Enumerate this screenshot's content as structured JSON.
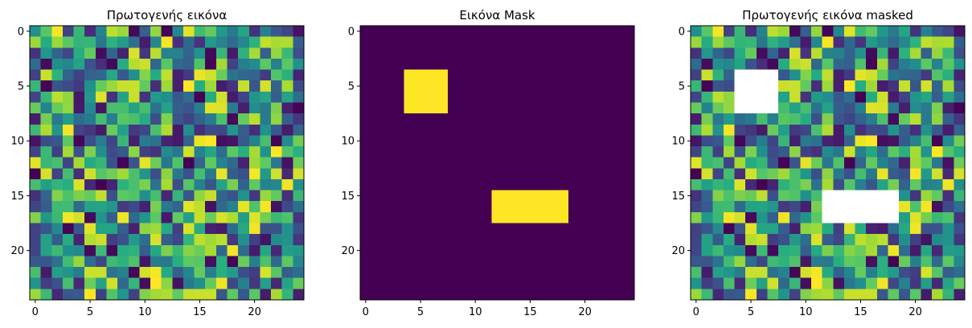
{
  "figure": {
    "background": "#ffffff"
  },
  "chart_data": [
    {
      "type": "heatmap",
      "title": "Πρωτογενής εικόνα",
      "grid_size": [
        25,
        25
      ],
      "colormap": "viridis",
      "value_range": [
        0,
        1
      ],
      "xlim": [
        -0.5,
        24.5
      ],
      "ylim": [
        24.5,
        -0.5
      ],
      "xticks": [
        0,
        5,
        10,
        15,
        20
      ],
      "yticks": [
        0,
        5,
        10,
        15,
        20
      ],
      "xlabel": "",
      "ylabel": "",
      "values_note": "random-valued 25x25 image",
      "masked_regions": []
    },
    {
      "type": "heatmap",
      "title": "Εικόνα Mask",
      "grid_size": [
        25,
        25
      ],
      "colormap": "viridis",
      "value_range": [
        0,
        1
      ],
      "xlim": [
        -0.5,
        24.5
      ],
      "ylim": [
        24.5,
        -0.5
      ],
      "xticks": [
        0,
        5,
        10,
        15,
        20
      ],
      "yticks": [
        0,
        5,
        10,
        15,
        20
      ],
      "xlabel": "",
      "ylabel": "",
      "regions_value_1": [
        {
          "row_start": 4,
          "row_end": 7,
          "col_start": 4,
          "col_end": 7
        },
        {
          "row_start": 15,
          "row_end": 17,
          "col_start": 12,
          "col_end": 18
        }
      ],
      "background_value": 0
    },
    {
      "type": "heatmap",
      "title": "Πρωτογενής εικόνα masked",
      "grid_size": [
        25,
        25
      ],
      "colormap": "viridis",
      "value_range": [
        0,
        1
      ],
      "xlim": [
        -0.5,
        24.5
      ],
      "ylim": [
        24.5,
        -0.5
      ],
      "xticks": [
        0,
        5,
        10,
        15,
        20
      ],
      "yticks": [
        0,
        5,
        10,
        15,
        20
      ],
      "xlabel": "",
      "ylabel": "",
      "values_note": "random-valued 25x25 image with masked cells shown blank",
      "masked_regions": [
        {
          "row_start": 4,
          "row_end": 7,
          "col_start": 4,
          "col_end": 7
        },
        {
          "row_start": 15,
          "row_end": 17,
          "col_start": 12,
          "col_end": 18
        }
      ]
    }
  ]
}
